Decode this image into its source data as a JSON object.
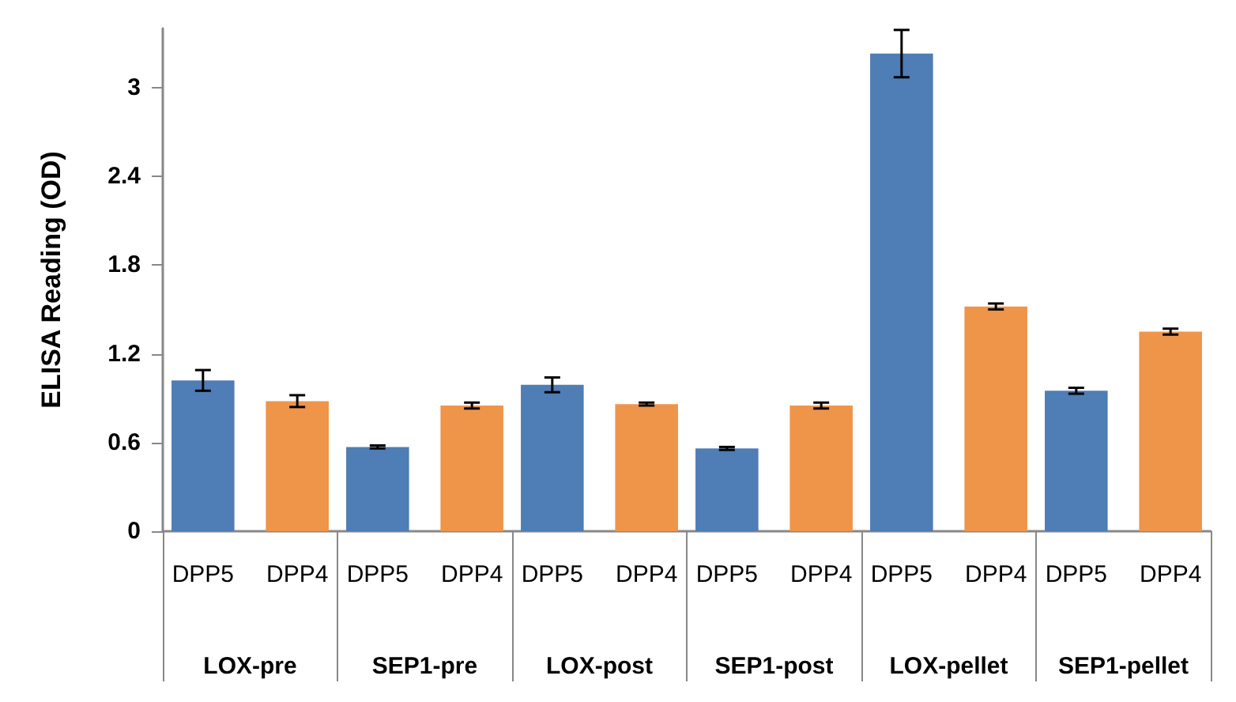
{
  "chart_data": {
    "type": "bar",
    "ylabel": "ELISA Reading (OD)",
    "categories": [
      "LOX-pre",
      "SEP1-pre",
      "LOX-post",
      "SEP1-post",
      "LOX-pellet",
      "SEP1-pellet"
    ],
    "series": [
      {
        "name": "DPP5",
        "color": "#4f7db5",
        "values": [
          1.02,
          0.57,
          0.99,
          0.56,
          3.23,
          0.95
        ],
        "errors": [
          0.07,
          0.01,
          0.05,
          0.01,
          0.16,
          0.02
        ]
      },
      {
        "name": "DPP4",
        "color": "#ee954a",
        "values": [
          0.88,
          0.85,
          0.86,
          0.85,
          1.52,
          1.35
        ],
        "errors": [
          0.04,
          0.02,
          0.01,
          0.02,
          0.02,
          0.02
        ]
      }
    ],
    "ylim": [
      0,
      3.4
    ],
    "yticks": [
      0,
      0.6,
      1.2,
      1.8,
      2.4,
      3
    ],
    "grid": false,
    "legend": false
  }
}
